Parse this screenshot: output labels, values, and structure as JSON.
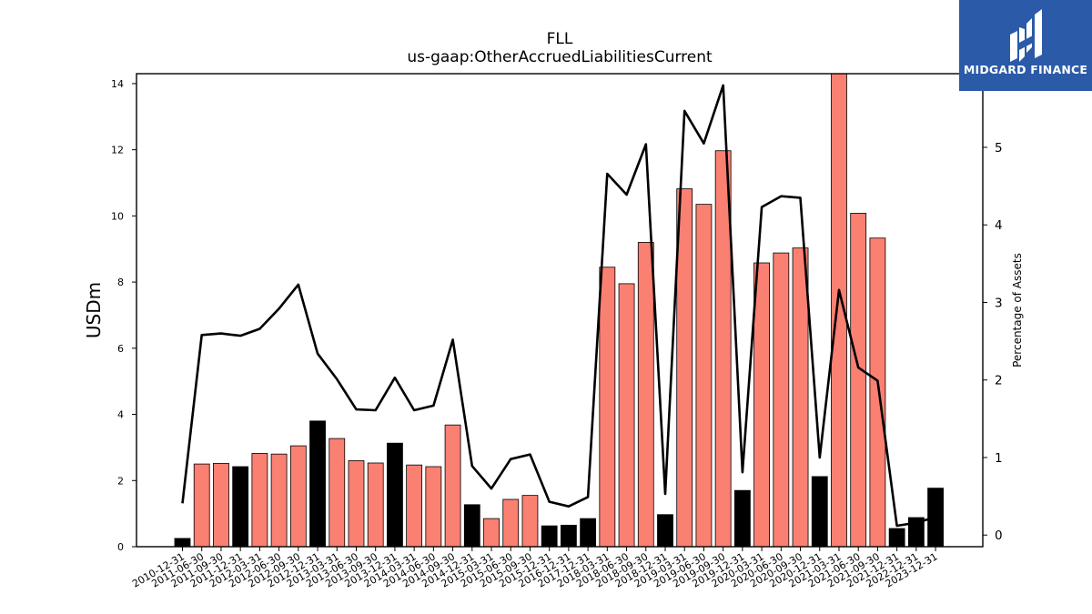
{
  "chart_data": {
    "type": "bar",
    "title": "FLL",
    "subtitle": "us-gaap:OtherAccruedLiabilitiesCurrent",
    "ylabel": "USDm",
    "y2label": "Percentage of Assets",
    "ylim": [
      0,
      14.3
    ],
    "y2lim": [
      -0.15,
      5.95
    ],
    "yticks": [
      0,
      2,
      4,
      6,
      8,
      10,
      12,
      14
    ],
    "y2ticks": [
      0,
      1,
      2,
      3,
      4,
      5
    ],
    "categories": [
      "2010-12-31",
      "2011-06-30",
      "2011-09-30",
      "2011-12-31",
      "2012-03-31",
      "2012-06-30",
      "2012-09-30",
      "2012-12-31",
      "2013-03-31",
      "2013-06-30",
      "2013-09-30",
      "2013-12-31",
      "2014-03-31",
      "2014-06-30",
      "2014-09-30",
      "2014-12-31",
      "2015-03-31",
      "2015-06-30",
      "2015-09-30",
      "2015-12-31",
      "2016-12-31",
      "2017-12-31",
      "2018-03-31",
      "2018-06-30",
      "2018-09-30",
      "2018-12-31",
      "2019-03-31",
      "2019-06-30",
      "2019-09-30",
      "2019-12-31",
      "2020-03-31",
      "2020-06-30",
      "2020-09-30",
      "2020-12-31",
      "2021-03-31",
      "2021-06-30",
      "2021-09-30",
      "2021-12-31",
      "2022-12-31",
      "2023-12-31"
    ],
    "series": [
      {
        "kind": "bar",
        "values": [
          0.25,
          2.5,
          2.52,
          2.42,
          2.82,
          2.8,
          3.05,
          3.8,
          3.27,
          2.6,
          2.53,
          3.13,
          2.47,
          2.42,
          3.68,
          1.27,
          0.85,
          1.43,
          1.55,
          0.63,
          0.65,
          0.85,
          8.45,
          7.95,
          9.2,
          0.97,
          10.82,
          10.35,
          11.97,
          1.7,
          8.58,
          8.88,
          9.03,
          2.12,
          14.3,
          10.08,
          9.33,
          0.55,
          0.88,
          1.77
        ],
        "colors": [
          "#000000",
          "#fa8072",
          "#fa8072",
          "#000000",
          "#fa8072",
          "#fa8072",
          "#fa8072",
          "#000000",
          "#fa8072",
          "#fa8072",
          "#fa8072",
          "#000000",
          "#fa8072",
          "#fa8072",
          "#fa8072",
          "#000000",
          "#fa8072",
          "#fa8072",
          "#fa8072",
          "#000000",
          "#000000",
          "#000000",
          "#fa8072",
          "#fa8072",
          "#fa8072",
          "#000000",
          "#fa8072",
          "#fa8072",
          "#fa8072",
          "#000000",
          "#fa8072",
          "#fa8072",
          "#fa8072",
          "#000000",
          "#fa8072",
          "#fa8072",
          "#fa8072",
          "#000000",
          "#000000",
          "#000000"
        ]
      },
      {
        "kind": "line",
        "axis": "right",
        "color": "#000000",
        "values": [
          0.41,
          2.58,
          2.6,
          2.57,
          2.66,
          2.92,
          3.23,
          2.34,
          2.01,
          1.62,
          1.61,
          2.03,
          1.61,
          1.67,
          2.52,
          0.89,
          0.6,
          0.98,
          1.04,
          0.43,
          0.37,
          0.49,
          4.66,
          4.39,
          5.04,
          0.53,
          5.47,
          5.05,
          5.8,
          0.81,
          4.23,
          4.37,
          4.35,
          1.0,
          3.16,
          2.16,
          1.99,
          0.12,
          0.16,
          0.23
        ]
      }
    ]
  },
  "logo": {
    "text": "MIDGARD FINANCE",
    "background": "#2b5aa8"
  }
}
